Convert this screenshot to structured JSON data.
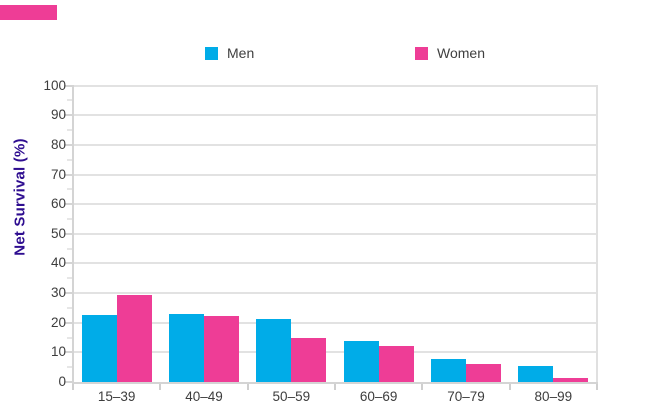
{
  "corner_marker": {
    "color": "#EE3D96"
  },
  "legend": {
    "items": [
      {
        "label": "Men",
        "color": "#00ACE8"
      },
      {
        "label": "Women",
        "color": "#EE3D96"
      }
    ]
  },
  "y_axis": {
    "title": "Net Survival (%)",
    "title_color": "#2E0D90",
    "tick_labels": [
      "0",
      "10",
      "20",
      "30",
      "40",
      "50",
      "60",
      "70",
      "80",
      "90",
      "100"
    ]
  },
  "chart_data": {
    "type": "bar",
    "title": "",
    "xlabel": "",
    "ylabel": "Net Survival (%)",
    "categories": [
      "15–39",
      "40–49",
      "50–59",
      "60–69",
      "70–79",
      "80–99"
    ],
    "series": [
      {
        "name": "Men",
        "color": "#00ACE8",
        "values": [
          22.5,
          22.8,
          21.3,
          13.7,
          7.8,
          5.5
        ]
      },
      {
        "name": "Women",
        "color": "#EE3D96",
        "values": [
          29.5,
          22.2,
          15.0,
          12.3,
          6.2,
          1.5
        ]
      }
    ],
    "ylim": [
      0,
      100
    ],
    "yticks": [
      0,
      10,
      20,
      30,
      40,
      50,
      60,
      70,
      80,
      90,
      100
    ],
    "minor_ytick_step": 5,
    "grid": true,
    "legend_position": "top"
  }
}
